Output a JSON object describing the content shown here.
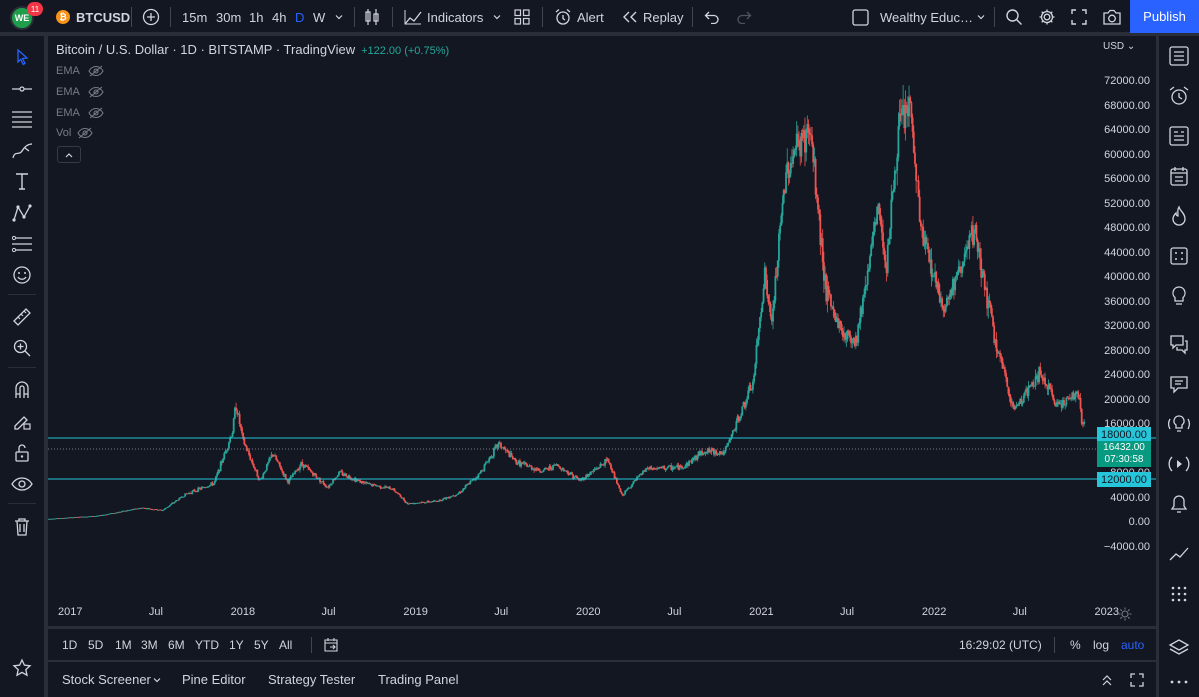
{
  "topbar": {
    "notification_count": "11",
    "symbol": "BTCUSD",
    "coin_glyph": "₿",
    "timeframes": [
      "15m",
      "30m",
      "1h",
      "4h",
      "D",
      "W"
    ],
    "active_timeframe": "D",
    "indicators_label": "Indicators",
    "alert_label": "Alert",
    "replay_label": "Replay",
    "layout_name": "Wealthy Educ…",
    "publish_label": "Publish"
  },
  "legend": {
    "title": "Bitcoin / U.S. Dollar · 1D · BITSTAMP · TradingView",
    "change": "+122.00 (+0.75%)",
    "indicators": [
      "EMA",
      "EMA",
      "EMA",
      "Vol"
    ]
  },
  "price_axis": {
    "currency": "USD",
    "ticks": [
      "72000.00",
      "68000.00",
      "64000.00",
      "60000.00",
      "56000.00",
      "52000.00",
      "48000.00",
      "44000.00",
      "40000.00",
      "36000.00",
      "32000.00",
      "28000.00",
      "24000.00",
      "20000.00",
      "16000.00",
      "12000.00",
      "8000.00",
      "4000.00",
      "0.00",
      "−4000.00"
    ]
  },
  "time_axis": {
    "ticks": [
      "2017",
      "Jul",
      "2018",
      "Jul",
      "2019",
      "Jul",
      "2020",
      "Jul",
      "2021",
      "Jul",
      "2022",
      "Jul",
      "2023"
    ]
  },
  "levels": {
    "resistance": "18000.00",
    "support": "12000.00",
    "current_price": "16432.00",
    "countdown": "07:30:58"
  },
  "rangebar": {
    "ranges": [
      "1D",
      "5D",
      "1M",
      "3M",
      "6M",
      "YTD",
      "1Y",
      "5Y",
      "All"
    ],
    "clock": "16:29:02 (UTC)",
    "percent_label": "%",
    "log_label": "log",
    "auto_label": "auto"
  },
  "bottom_tabs": [
    "Stock Screener",
    "Pine Editor",
    "Strategy Tester",
    "Trading Panel"
  ],
  "chart_data": {
    "type": "candlestick",
    "symbol": "BTCUSD",
    "exchange": "BITSTAMP",
    "interval": "1D",
    "y_unit": "USD",
    "ylim": [
      -6000,
      73800
    ],
    "x_range": [
      "2016-11-15",
      "2023-04-15"
    ],
    "horizontal_levels": [
      18000,
      12000
    ],
    "current_price": 16432,
    "anchor_closes": [
      {
        "date": "2016-11-15",
        "price": 700
      },
      {
        "date": "2017-03-01",
        "price": 1200
      },
      {
        "date": "2017-06-01",
        "price": 2500
      },
      {
        "date": "2017-07-15",
        "price": 2100
      },
      {
        "date": "2017-09-01",
        "price": 4700
      },
      {
        "date": "2017-11-01",
        "price": 6500
      },
      {
        "date": "2017-12-10",
        "price": 15000
      },
      {
        "date": "2017-12-17",
        "price": 19500
      },
      {
        "date": "2018-01-01",
        "price": 13500
      },
      {
        "date": "2018-02-06",
        "price": 6900
      },
      {
        "date": "2018-03-05",
        "price": 11400
      },
      {
        "date": "2018-04-06",
        "price": 6700
      },
      {
        "date": "2018-05-05",
        "price": 9800
      },
      {
        "date": "2018-06-29",
        "price": 5900
      },
      {
        "date": "2018-07-24",
        "price": 8300
      },
      {
        "date": "2018-09-15",
        "price": 6500
      },
      {
        "date": "2018-11-14",
        "price": 5600
      },
      {
        "date": "2018-12-15",
        "price": 3200
      },
      {
        "date": "2019-02-15",
        "price": 3600
      },
      {
        "date": "2019-04-02",
        "price": 4900
      },
      {
        "date": "2019-05-15",
        "price": 8000
      },
      {
        "date": "2019-06-26",
        "price": 13000
      },
      {
        "date": "2019-08-01",
        "price": 10000
      },
      {
        "date": "2019-09-25",
        "price": 8500
      },
      {
        "date": "2019-10-26",
        "price": 9500
      },
      {
        "date": "2019-12-15",
        "price": 7000
      },
      {
        "date": "2020-02-12",
        "price": 10300
      },
      {
        "date": "2020-03-12",
        "price": 4500
      },
      {
        "date": "2020-05-01",
        "price": 8800
      },
      {
        "date": "2020-07-20",
        "price": 9200
      },
      {
        "date": "2020-09-01",
        "price": 11800
      },
      {
        "date": "2020-10-15",
        "price": 11500
      },
      {
        "date": "2020-12-15",
        "price": 23000
      },
      {
        "date": "2021-01-08",
        "price": 41000
      },
      {
        "date": "2021-01-22",
        "price": 32000
      },
      {
        "date": "2021-02-21",
        "price": 57000
      },
      {
        "date": "2021-03-13",
        "price": 61000
      },
      {
        "date": "2021-04-14",
        "price": 64000
      },
      {
        "date": "2021-05-19",
        "price": 37000
      },
      {
        "date": "2021-06-22",
        "price": 31000
      },
      {
        "date": "2021-07-20",
        "price": 30000
      },
      {
        "date": "2021-09-06",
        "price": 52000
      },
      {
        "date": "2021-09-21",
        "price": 42000
      },
      {
        "date": "2021-10-20",
        "price": 65000
      },
      {
        "date": "2021-11-10",
        "price": 68500
      },
      {
        "date": "2021-12-04",
        "price": 48000
      },
      {
        "date": "2022-01-22",
        "price": 35000
      },
      {
        "date": "2022-03-28",
        "price": 47500
      },
      {
        "date": "2022-05-09",
        "price": 30000
      },
      {
        "date": "2022-06-18",
        "price": 18500
      },
      {
        "date": "2022-08-14",
        "price": 24500
      },
      {
        "date": "2022-09-15",
        "price": 19500
      },
      {
        "date": "2022-11-05",
        "price": 21000
      },
      {
        "date": "2022-11-09",
        "price": 16500
      },
      {
        "date": "2022-11-15",
        "price": 16432
      }
    ]
  }
}
